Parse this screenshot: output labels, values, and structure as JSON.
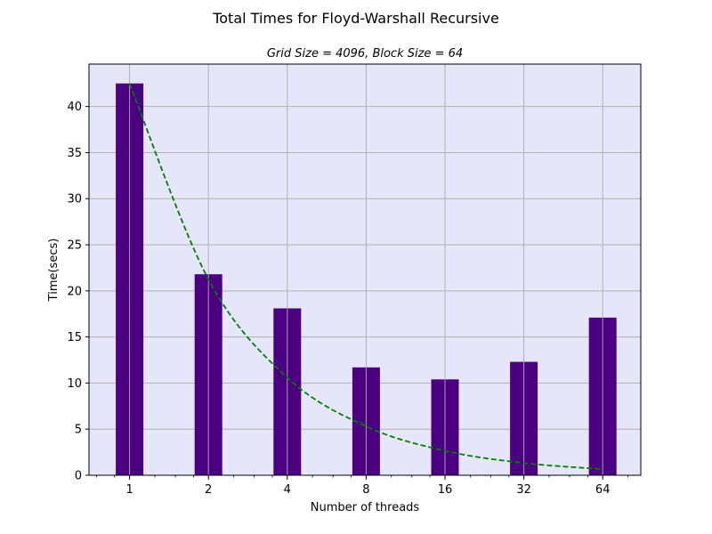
{
  "chart_data": {
    "type": "bar",
    "title": "Total Times for Floyd-Warshall Recursive",
    "subtitle": "Grid Size = 4096, Block Size = 64",
    "xlabel": "Number of threads",
    "ylabel": "Time(secs)",
    "categories": [
      "1",
      "2",
      "4",
      "8",
      "16",
      "32",
      "64"
    ],
    "x_scale": "log2",
    "ylim": [
      0,
      44.6
    ],
    "yticks": [
      0,
      5,
      10,
      15,
      20,
      25,
      30,
      35,
      40
    ],
    "grid": true,
    "series": [
      {
        "values": [
          42.5,
          21.8,
          18.1,
          11.7,
          10.4,
          12.3,
          17.1
        ]
      },
      {
        "values": [
          42.5,
          21.25,
          10.6,
          5.3,
          2.65,
          1.33,
          0.66
        ]
      }
    ],
    "colors": {
      "background": "#e6e6fa",
      "bar": "#4b0082",
      "line": "#008000",
      "grid": "#b0b0b0"
    }
  }
}
